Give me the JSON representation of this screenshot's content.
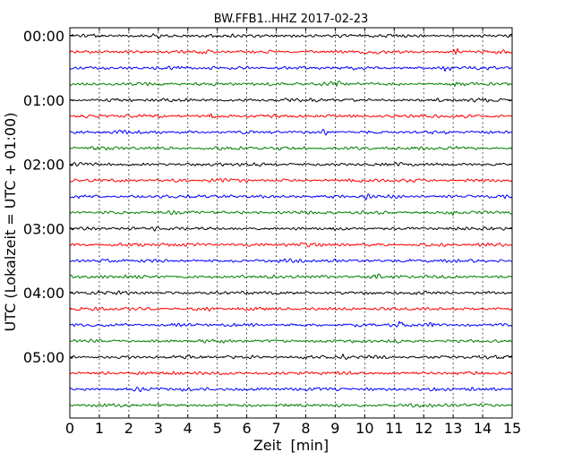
{
  "chart_data": {
    "type": "line",
    "title": "BW.FFB1..HHZ 2017-02-23",
    "xlabel": "Zeit  [min]",
    "ylabel": "UTC (Lokalzeit = UTC + 01:00)",
    "xlim": [
      0,
      15
    ],
    "x_ticks": [
      "0",
      "1",
      "2",
      "3",
      "4",
      "5",
      "6",
      "7",
      "8",
      "9",
      "10",
      "11",
      "12",
      "13",
      "14",
      "15"
    ],
    "y_tick_labels": [
      {
        "label": "00:00",
        "row": 0
      },
      {
        "label": "01:00",
        "row": 4
      },
      {
        "label": "02:00",
        "row": 8
      },
      {
        "label": "03:00",
        "row": 12
      },
      {
        "label": "04:00",
        "row": 16
      },
      {
        "label": "05:00",
        "row": 20
      }
    ],
    "rows_per_hour": 4,
    "row_count": 24,
    "minutes_per_row": 15,
    "grid": "vertical dotted",
    "series_colors": [
      "#000000",
      "#ff0000",
      "#0000ff",
      "#008000"
    ],
    "events": [
      {
        "row": 0,
        "minute": 2.95,
        "amp": 1.3
      },
      {
        "row": 1,
        "minute": 13.1,
        "amp": 1.6
      },
      {
        "row": 2,
        "minute": 12.8,
        "amp": 2.2
      },
      {
        "row": 3,
        "minute": 9.0,
        "amp": 1.6
      },
      {
        "row": 3,
        "minute": 13.0,
        "amp": 1.4
      },
      {
        "row": 5,
        "minute": 4.8,
        "amp": 1.6
      },
      {
        "row": 6,
        "minute": 8.7,
        "amp": 1.5
      },
      {
        "row": 7,
        "minute": 0.8,
        "amp": 1.5
      },
      {
        "row": 7,
        "minute": 13.0,
        "amp": 1.4
      },
      {
        "row": 10,
        "minute": 10.0,
        "amp": 1.5
      },
      {
        "row": 11,
        "minute": 13.0,
        "amp": 1.3
      },
      {
        "row": 15,
        "minute": 10.4,
        "amp": 1.6
      },
      {
        "row": 18,
        "minute": 11.2,
        "amp": 1.7
      },
      {
        "row": 18,
        "minute": 12.3,
        "amp": 1.6
      },
      {
        "row": 20,
        "minute": 9.3,
        "amp": 1.3
      },
      {
        "row": 22,
        "minute": 13.7,
        "amp": 1.3
      }
    ]
  }
}
